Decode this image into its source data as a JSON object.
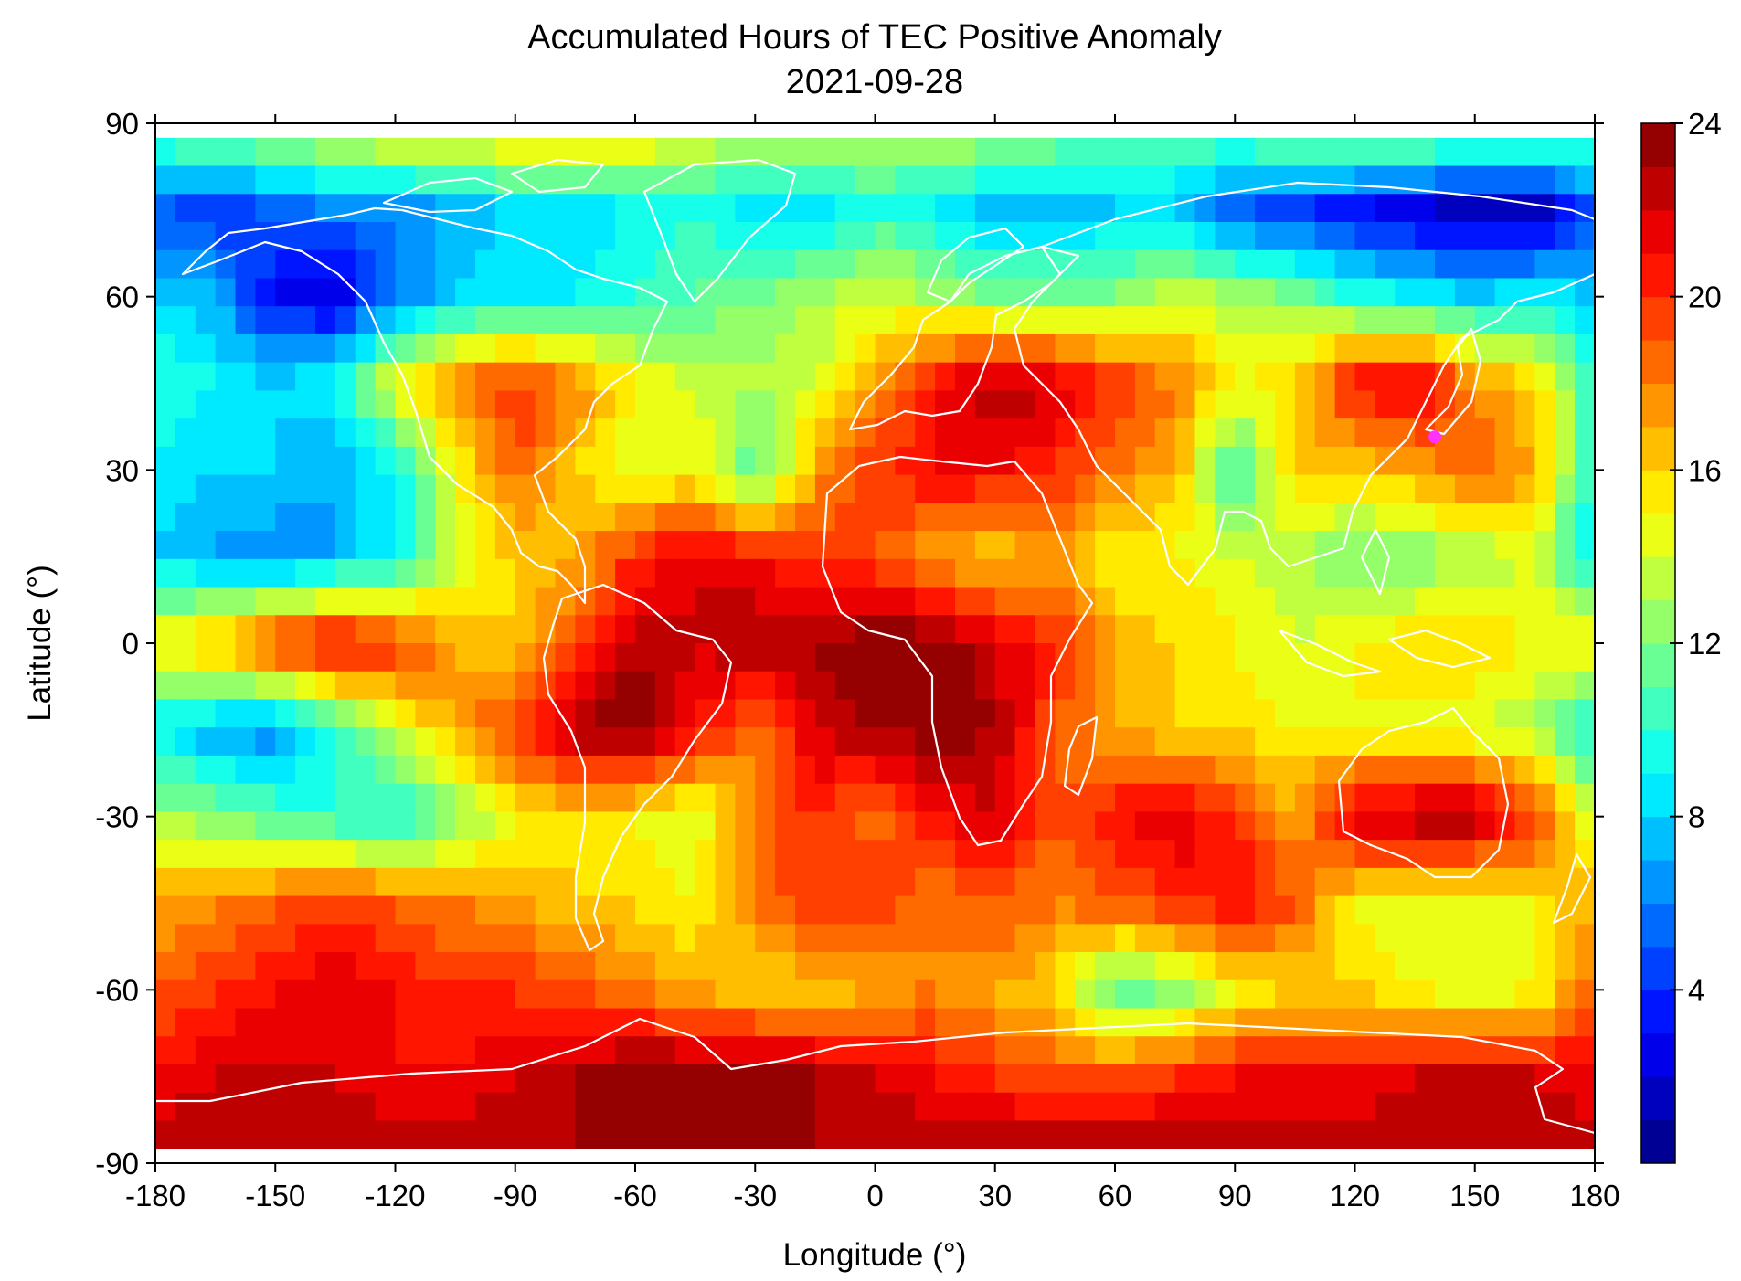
{
  "chart_data": {
    "type": "heatmap",
    "title": "Accumulated Hours of TEC Positive Anomaly",
    "subtitle": "2021-09-28",
    "xlabel": "Longitude (°)",
    "ylabel": "Latitude (°)",
    "xlim": [
      -180,
      180
    ],
    "ylim": [
      -90,
      90
    ],
    "x_ticks": [
      -180,
      -150,
      -120,
      -90,
      -60,
      -30,
      0,
      30,
      60,
      90,
      120,
      150,
      180
    ],
    "y_ticks": [
      -90,
      -60,
      -30,
      0,
      30,
      60,
      90
    ],
    "colorbar": {
      "range": [
        0,
        24
      ],
      "ticks": [
        4,
        8,
        12,
        16,
        20,
        24
      ],
      "levels": 24,
      "colormap": "jet"
    },
    "marker": {
      "lon": 140,
      "lat": 35.7,
      "color": "#ff33ff"
    },
    "grid_lon": [
      -180,
      -165,
      -150,
      -135,
      -120,
      -105,
      -90,
      -75,
      -60,
      -45,
      -30,
      -15,
      0,
      15,
      30,
      45,
      60,
      75,
      90,
      105,
      120,
      135,
      150,
      165,
      180
    ],
    "grid_lat": [
      87.5,
      75,
      60,
      45,
      30,
      15,
      0,
      -15,
      -30,
      -45,
      -60,
      -75,
      -87.5
    ],
    "values": [
      [
        11,
        12,
        13,
        14,
        15,
        15,
        16,
        16,
        16,
        14,
        13,
        13,
        13,
        13,
        13,
        12,
        11,
        11,
        11,
        12,
        13,
        12,
        12,
        12,
        11
      ],
      [
        5,
        4,
        5,
        6,
        6,
        7,
        8,
        8,
        9,
        10,
        8,
        8,
        10,
        9,
        7,
        7,
        8,
        8,
        5,
        4,
        3,
        2,
        1,
        1,
        5
      ],
      [
        8,
        7,
        3,
        2,
        6,
        8,
        9,
        9,
        10,
        11,
        12,
        13,
        14,
        13,
        12,
        12,
        12,
        14,
        13,
        12,
        10,
        9,
        8,
        9,
        8
      ],
      [
        10,
        9,
        8,
        9,
        15,
        18,
        20,
        18,
        15,
        14,
        13,
        14,
        17,
        21,
        23,
        22,
        20,
        18,
        15,
        16,
        21,
        22,
        18,
        16,
        10
      ],
      [
        9,
        8,
        8,
        7,
        9,
        15,
        19,
        16,
        14,
        15,
        11,
        17,
        20,
        21,
        21,
        20,
        18,
        17,
        10,
        16,
        16,
        17,
        19,
        17,
        9
      ],
      [
        8,
        7,
        6,
        7,
        9,
        14,
        16,
        17,
        20,
        22,
        21,
        20,
        19,
        17,
        16,
        17,
        15,
        15,
        14,
        13,
        12,
        12,
        13,
        14,
        8
      ],
      [
        15,
        17,
        20,
        22,
        20,
        17,
        16,
        19,
        23,
        22,
        23,
        23,
        24,
        24,
        22,
        20,
        17,
        16,
        15,
        14,
        15,
        16,
        16,
        15,
        15
      ],
      [
        9,
        7,
        6,
        10,
        14,
        17,
        20,
        23,
        24,
        21,
        18,
        22,
        23,
        24,
        23,
        19,
        17,
        16,
        16,
        15,
        15,
        14,
        14,
        13,
        9
      ],
      [
        13,
        12,
        11,
        10,
        9,
        12,
        15,
        16,
        15,
        14,
        18,
        20,
        18,
        21,
        22,
        19,
        21,
        22,
        20,
        17,
        22,
        23,
        23,
        20,
        13
      ],
      [
        17,
        18,
        19,
        20,
        19,
        18,
        17,
        16,
        16,
        15,
        18,
        20,
        20,
        18,
        19,
        18,
        19,
        20,
        21,
        19,
        15,
        14,
        14,
        15,
        17
      ],
      [
        19,
        20,
        21,
        22,
        21,
        20,
        20,
        19,
        18,
        17,
        16,
        16,
        17,
        18,
        17,
        16,
        11,
        12,
        15,
        16,
        16,
        15,
        14,
        15,
        19
      ],
      [
        21,
        22,
        22,
        22,
        21,
        21,
        22,
        23,
        24,
        24,
        24,
        23,
        22,
        21,
        20,
        19,
        19,
        20,
        21,
        21,
        21,
        22,
        22,
        22,
        21
      ],
      [
        23,
        23,
        23,
        23,
        23,
        23,
        23,
        23,
        23,
        23,
        23,
        23,
        23,
        23,
        23,
        23,
        23,
        23,
        23,
        23,
        23,
        23,
        23,
        23,
        23
      ]
    ]
  }
}
